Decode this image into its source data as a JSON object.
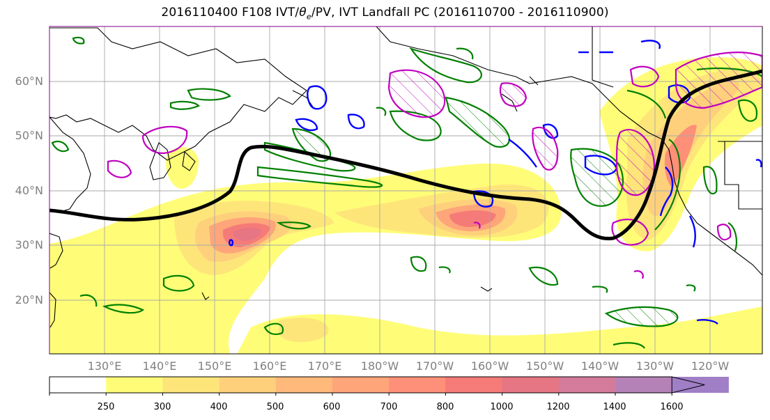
{
  "title": {
    "main": "2016110400 F108 IVT/",
    "theta": "θ",
    "theta_sub": "e",
    "rest": "/PV, IVT Landfall PC (2016110700 - 2016110900)"
  },
  "lat_labels": [
    "60°N",
    "50°N",
    "40°N",
    "30°N",
    "20°N"
  ],
  "lon_labels": [
    "130°E",
    "140°E",
    "150°E",
    "160°E",
    "170°E",
    "180°W",
    "170°W",
    "160°W",
    "150°W",
    "140°W",
    "130°W",
    "120°W"
  ],
  "colorbar": {
    "ticks": [
      "250",
      "300",
      "400",
      "500",
      "600",
      "700",
      "800",
      "1000",
      "1200",
      "1400",
      "1600"
    ],
    "colors": [
      "#ffffff",
      "#fffd77",
      "#fee57a",
      "#fed07c",
      "#feb97b",
      "#fea57a",
      "#fe8f78",
      "#f57b78",
      "#e67684",
      "#d47b9b",
      "#b482b6",
      "#a07fc6"
    ]
  },
  "legend_colors": {
    "principal_component": "#000000",
    "theta_e": "#008000",
    "pv_blue": "#0000ff",
    "pv_magenta": "#c000c0"
  }
}
